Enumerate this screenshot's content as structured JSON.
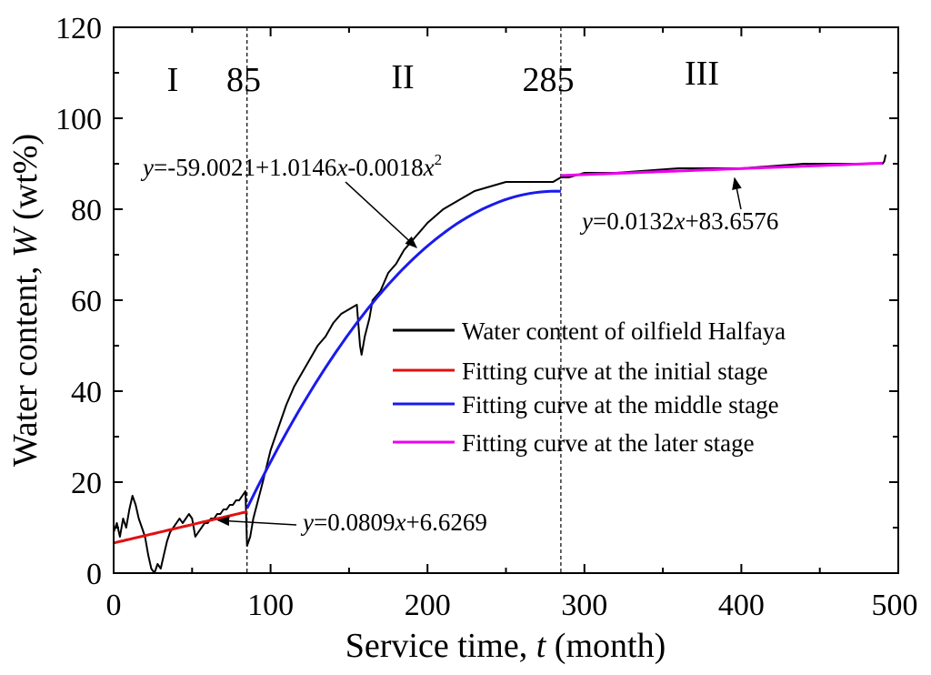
{
  "chart_data": {
    "type": "line",
    "xlabel": "Service time, t (month)",
    "xlabel_parts": {
      "prefix": "Service time, ",
      "var": "t",
      "suffix": " (month)"
    },
    "ylabel": "Water content, W (wt%)",
    "ylabel_parts": {
      "prefix": "Water content, ",
      "var": "W",
      "suffix": " (wt%)"
    },
    "xlim": [
      0,
      500
    ],
    "ylim": [
      0,
      120
    ],
    "xticks": [
      0,
      100,
      200,
      300,
      400,
      500
    ],
    "yticks": [
      0,
      20,
      40,
      60,
      80,
      100,
      120
    ],
    "boundaries": [
      {
        "x": 85,
        "label": "85"
      },
      {
        "x": 285,
        "label": "285"
      }
    ],
    "stages": [
      "I",
      "II",
      "III"
    ],
    "series": [
      {
        "name": "Water content of oilfield Halfaya",
        "color": "#000000",
        "x": [
          0,
          2,
          4,
          6,
          8,
          10,
          12,
          14,
          16,
          18,
          20,
          22,
          24,
          26,
          28,
          30,
          32,
          34,
          36,
          38,
          40,
          42,
          44,
          46,
          48,
          50,
          52,
          54,
          56,
          58,
          60,
          62,
          64,
          66,
          68,
          70,
          72,
          74,
          76,
          78,
          80,
          82,
          84,
          85,
          87,
          89,
          92,
          95,
          100,
          105,
          110,
          115,
          120,
          125,
          130,
          135,
          140,
          145,
          150,
          155,
          157,
          158,
          160,
          163,
          165,
          170,
          175,
          180,
          185,
          190,
          195,
          200,
          210,
          220,
          230,
          240,
          250,
          260,
          270,
          280,
          285,
          290,
          300,
          320,
          340,
          360,
          380,
          400,
          420,
          440,
          460,
          480,
          490,
          491,
          492
        ],
        "y": [
          9,
          11,
          8,
          12,
          10,
          14,
          17,
          15,
          12,
          10,
          8,
          4,
          1,
          0,
          2,
          1,
          4,
          7,
          9,
          10,
          11,
          12,
          11,
          12,
          13,
          12,
          8,
          9,
          10,
          11,
          11,
          12,
          12,
          13,
          13,
          14,
          14,
          15,
          15,
          16,
          16,
          17,
          18,
          6,
          8,
          12,
          16,
          20,
          27,
          32,
          37,
          41,
          44,
          47,
          50,
          52,
          55,
          57,
          58,
          59,
          50,
          48,
          52,
          56,
          60,
          62,
          66,
          68,
          71,
          73,
          75,
          77,
          80,
          82,
          84,
          85,
          86,
          86,
          86,
          86,
          87,
          87,
          88,
          88,
          88.5,
          89,
          89,
          89,
          89.5,
          90,
          90,
          90,
          90,
          90.5,
          92
        ]
      },
      {
        "name": "Fitting curve at the initial stage",
        "color": "#e01010",
        "equation": {
          "parts": [
            "y",
            "=0.0809",
            "x",
            "+6.6269"
          ]
        },
        "x_range": [
          0,
          85
        ],
        "slope": 0.0809,
        "intercept": 6.6269
      },
      {
        "name": "Fitting curve at the middle stage",
        "color": "#1a1aee",
        "equation": {
          "parts": [
            "y",
            "=-59.0021+1.0146",
            "x",
            "-0.0018",
            "x",
            "2"
          ]
        },
        "x_range": [
          85,
          285
        ],
        "coeffs": [
          -59.0021,
          1.0146,
          -0.0018
        ]
      },
      {
        "name": "Fitting curve at the later stage",
        "color": "#ee00ee",
        "equation": {
          "parts": [
            "y",
            "=0.0132",
            "x",
            "+83.6576"
          ]
        },
        "x_range": [
          285,
          490
        ],
        "slope": 0.0132,
        "intercept": 83.6576
      }
    ]
  }
}
